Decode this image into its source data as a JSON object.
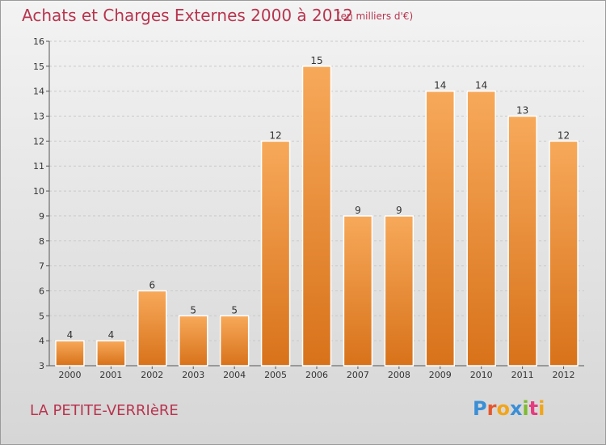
{
  "header": {
    "title": "Achats et Charges Externes 2000 à 2012",
    "subtitle": "(en milliers d'€)"
  },
  "footer": {
    "place": "LA PETITE-VERRIèRE",
    "logo": "Proxiti",
    "logo_colors": [
      "#3a8fd6",
      "#e4572e",
      "#f2a51a",
      "#3a8fd6",
      "#7dbb2f",
      "#e43c7f",
      "#f2a51a"
    ]
  },
  "chart_data": {
    "type": "bar",
    "title": "Achats et Charges Externes 2000 à 2012",
    "subtitle": "(en milliers d'€)",
    "xlabel": "",
    "ylabel": "",
    "categories": [
      "2000",
      "2001",
      "2002",
      "2003",
      "2004",
      "2005",
      "2006",
      "2007",
      "2008",
      "2009",
      "2010",
      "2011",
      "2012"
    ],
    "values": [
      4,
      4,
      6,
      5,
      5,
      12,
      15,
      9,
      9,
      14,
      14,
      13,
      12
    ],
    "ylim": [
      3,
      16
    ],
    "yticks": [
      "3",
      "4",
      "5",
      "6",
      "7",
      "8",
      "9",
      "10",
      "11",
      "12",
      "13",
      "14",
      "15",
      "16"
    ],
    "grid": true,
    "legend": "none",
    "bar_color": "#ee8a2e",
    "bar_color_light": "#f7a95a",
    "bar_color_dark": "#d8721a"
  }
}
